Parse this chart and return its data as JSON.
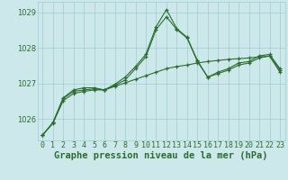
{
  "title": "Graphe pression niveau de la mer (hPa)",
  "xlabel_hours": [
    0,
    1,
    2,
    3,
    4,
    5,
    6,
    7,
    8,
    9,
    10,
    11,
    12,
    13,
    14,
    15,
    16,
    17,
    18,
    19,
    20,
    21,
    22,
    23
  ],
  "line1": [
    1025.55,
    1025.9,
    1026.6,
    1026.82,
    1026.88,
    1026.88,
    1026.82,
    1026.98,
    1027.18,
    1027.48,
    1027.82,
    1028.6,
    1029.08,
    1028.55,
    1028.3,
    1027.65,
    1027.18,
    1027.32,
    1027.42,
    1027.58,
    1027.62,
    1027.78,
    1027.82,
    1027.42
  ],
  "line2": [
    1025.55,
    1025.9,
    1026.58,
    1026.78,
    1026.82,
    1026.85,
    1026.82,
    1026.95,
    1027.1,
    1027.42,
    1027.75,
    1028.52,
    1028.88,
    1028.52,
    1028.28,
    1027.62,
    1027.18,
    1027.28,
    1027.38,
    1027.52,
    1027.58,
    1027.72,
    1027.78,
    1027.38
  ],
  "line3": [
    1025.55,
    1025.88,
    1026.52,
    1026.72,
    1026.78,
    1026.82,
    1026.82,
    1026.92,
    1027.02,
    1027.12,
    1027.22,
    1027.32,
    1027.42,
    1027.48,
    1027.52,
    1027.58,
    1027.62,
    1027.65,
    1027.68,
    1027.7,
    1027.72,
    1027.75,
    1027.77,
    1027.32
  ],
  "line_color": "#2d6e2d",
  "bg_color": "#cce8eb",
  "grid_color": "#9ecdd2",
  "ylim": [
    1025.4,
    1029.3
  ],
  "yticks": [
    1026,
    1027,
    1028,
    1029
  ],
  "title_fontsize": 7.5,
  "tick_fontsize": 6.0
}
